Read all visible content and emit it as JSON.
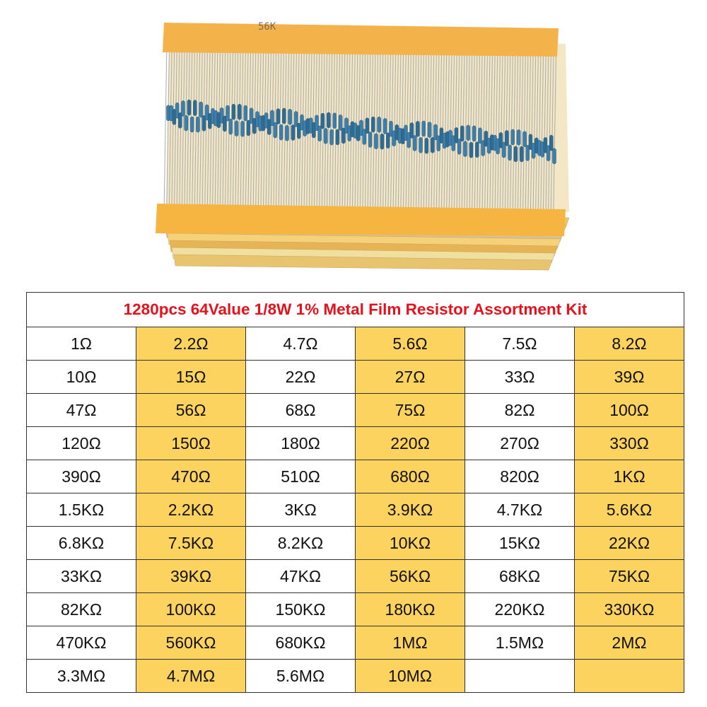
{
  "photo": {
    "tape_label": "56K"
  },
  "header": {
    "title": "1280pcs 64Value 1/8W 1% Metal Film Resistor Assortment Kit"
  },
  "table": {
    "rows": [
      [
        "1Ω",
        "2.2Ω",
        "4.7Ω",
        "5.6Ω",
        "7.5Ω",
        "8.2Ω"
      ],
      [
        "10Ω",
        "15Ω",
        "22Ω",
        "27Ω",
        "33Ω",
        "39Ω"
      ],
      [
        "47Ω",
        "56Ω",
        "68Ω",
        "75Ω",
        "82Ω",
        "100Ω"
      ],
      [
        "120Ω",
        "150Ω",
        "180Ω",
        "220Ω",
        "270Ω",
        "330Ω"
      ],
      [
        "390Ω",
        "470Ω",
        "510Ω",
        "680Ω",
        "820Ω",
        "1KΩ"
      ],
      [
        "1.5KΩ",
        "2.2KΩ",
        "3KΩ",
        "3.9KΩ",
        "4.7KΩ",
        "5.6KΩ"
      ],
      [
        "6.8KΩ",
        "7.5KΩ",
        "8.2KΩ",
        "10KΩ",
        "15KΩ",
        "22KΩ"
      ],
      [
        "33KΩ",
        "39KΩ",
        "47KΩ",
        "56KΩ",
        "68KΩ",
        "75KΩ"
      ],
      [
        "82KΩ",
        "100KΩ",
        "150KΩ",
        "180KΩ",
        "220KΩ",
        "330KΩ"
      ],
      [
        "470KΩ",
        "560KΩ",
        "680KΩ",
        "1MΩ",
        "1.5MΩ",
        "2MΩ"
      ],
      [
        "3.3MΩ",
        "4.7MΩ",
        "5.6MΩ",
        "10MΩ"
      ]
    ]
  }
}
